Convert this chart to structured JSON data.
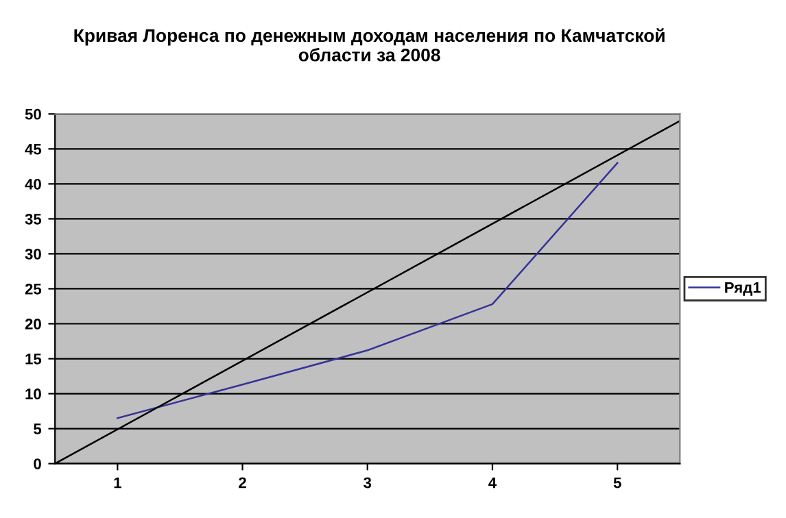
{
  "chart_data": {
    "type": "line",
    "title": "Кривая Лоренса по денежным доходам населения по Камчатской области за 2008",
    "x": [
      1,
      2,
      3,
      4,
      5
    ],
    "xlim": [
      0.5,
      5.5
    ],
    "xticks": [
      1,
      2,
      3,
      4,
      5
    ],
    "ylim": [
      0,
      50
    ],
    "yticks": [
      0,
      5,
      10,
      15,
      20,
      25,
      30,
      35,
      40,
      45,
      50
    ],
    "series": [
      {
        "name": "Ряд1",
        "color": "#333399",
        "values": [
          6.5,
          11.3,
          16.2,
          22.8,
          43
        ]
      },
      {
        "color": "#000000",
        "x": [
          0.5,
          5.5
        ],
        "values": [
          0,
          49
        ]
      }
    ],
    "grid": "y",
    "legend": "right",
    "marker": "none",
    "line_style": "solid"
  }
}
